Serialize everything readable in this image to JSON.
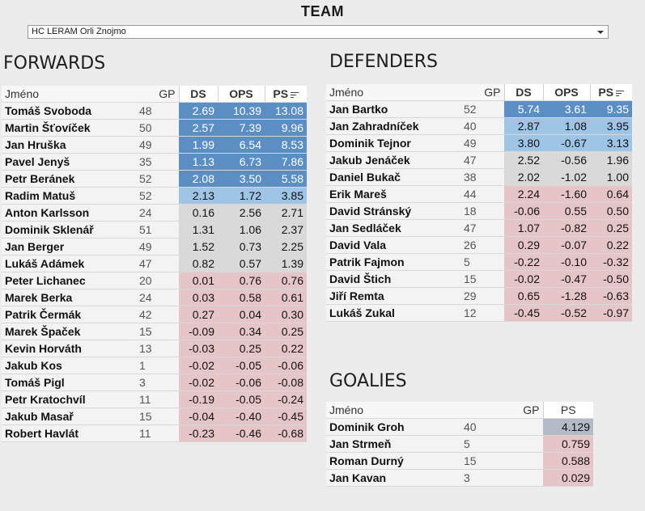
{
  "header": {
    "title": "TEAM",
    "team_selected": "HC LERAM Orli Znojmo"
  },
  "colors": {
    "tier_high": "#5b8fc4",
    "tier_mid": "#9ec5e6",
    "tier_neutral": "#d9d9d9",
    "tier_low": "#e6c5c8"
  },
  "forwards": {
    "title": "FORWARDS",
    "columns": {
      "name": "Jméno",
      "gp": "GP",
      "ds": "DS",
      "ops": "OPS",
      "ps": "PS"
    },
    "rows": [
      {
        "name": "Tomáš Svoboda",
        "gp": "48",
        "ds": "2.69",
        "ops": "10.39",
        "ps": "13.08",
        "tier": "t1"
      },
      {
        "name": "Martin Šťovíček",
        "gp": "50",
        "ds": "2.57",
        "ops": "7.39",
        "ps": "9.96",
        "tier": "t1"
      },
      {
        "name": "Jan Hruška",
        "gp": "49",
        "ds": "1.99",
        "ops": "6.54",
        "ps": "8.53",
        "tier": "t1"
      },
      {
        "name": "Pavel Jenyš",
        "gp": "35",
        "ds": "1.13",
        "ops": "6.73",
        "ps": "7.86",
        "tier": "t1"
      },
      {
        "name": "Petr Beránek",
        "gp": "52",
        "ds": "2.08",
        "ops": "3.50",
        "ps": "5.58",
        "tier": "t1"
      },
      {
        "name": "Radim Matuš",
        "gp": "52",
        "ds": "2.13",
        "ops": "1.72",
        "ps": "3.85",
        "tier": "t2"
      },
      {
        "name": "Anton Karlsson",
        "gp": "24",
        "ds": "0.16",
        "ops": "2.56",
        "ps": "2.71",
        "tier": "t3"
      },
      {
        "name": "Dominik Sklenář",
        "gp": "51",
        "ds": "1.31",
        "ops": "1.06",
        "ps": "2.37",
        "tier": "t3"
      },
      {
        "name": "Jan Berger",
        "gp": "49",
        "ds": "1.52",
        "ops": "0.73",
        "ps": "2.25",
        "tier": "t3"
      },
      {
        "name": "Lukáš Adámek",
        "gp": "47",
        "ds": "0.82",
        "ops": "0.57",
        "ps": "1.39",
        "tier": "t3"
      },
      {
        "name": "Peter Lichanec",
        "gp": "20",
        "ds": "0.01",
        "ops": "0.76",
        "ps": "0.76",
        "tier": "t4"
      },
      {
        "name": "Marek Berka",
        "gp": "24",
        "ds": "0.03",
        "ops": "0.58",
        "ps": "0.61",
        "tier": "t4"
      },
      {
        "name": "Patrik Čermák",
        "gp": "42",
        "ds": "0.27",
        "ops": "0.04",
        "ps": "0.30",
        "tier": "t4"
      },
      {
        "name": "Marek Špaček",
        "gp": "15",
        "ds": "-0.09",
        "ops": "0.34",
        "ps": "0.25",
        "tier": "t4"
      },
      {
        "name": "Kevin Horváth",
        "gp": "13",
        "ds": "-0.03",
        "ops": "0.25",
        "ps": "0.22",
        "tier": "t4"
      },
      {
        "name": "Jakub Kos",
        "gp": "1",
        "ds": "-0.02",
        "ops": "-0.05",
        "ps": "-0.06",
        "tier": "t4"
      },
      {
        "name": "Tomáš Pigl",
        "gp": "3",
        "ds": "-0.02",
        "ops": "-0.06",
        "ps": "-0.08",
        "tier": "t4"
      },
      {
        "name": "Petr Kratochvíl",
        "gp": "11",
        "ds": "-0.19",
        "ops": "-0.05",
        "ps": "-0.24",
        "tier": "t4"
      },
      {
        "name": "Jakub Masař",
        "gp": "15",
        "ds": "-0.04",
        "ops": "-0.40",
        "ps": "-0.45",
        "tier": "t4"
      },
      {
        "name": "Robert Havlát",
        "gp": "11",
        "ds": "-0.23",
        "ops": "-0.46",
        "ps": "-0.68",
        "tier": "t4"
      }
    ]
  },
  "defenders": {
    "title": "DEFENDERS",
    "columns": {
      "name": "Jméno",
      "gp": "GP",
      "ds": "DS",
      "ops": "OPS",
      "ps": "PS"
    },
    "rows": [
      {
        "name": "Jan Bartko",
        "gp": "52",
        "ds": "5.74",
        "ops": "3.61",
        "ps": "9.35",
        "tier": "t1"
      },
      {
        "name": "Jan Zahradníček",
        "gp": "40",
        "ds": "2.87",
        "ops": "1.08",
        "ps": "3.95",
        "tier": "t2"
      },
      {
        "name": "Dominik Tejnor",
        "gp": "49",
        "ds": "3.80",
        "ops": "-0.67",
        "ps": "3.13",
        "tier": "t2"
      },
      {
        "name": "Jakub Jenáček",
        "gp": "47",
        "ds": "2.52",
        "ops": "-0.56",
        "ps": "1.96",
        "tier": "t3"
      },
      {
        "name": "Daniel Bukač",
        "gp": "38",
        "ds": "2.02",
        "ops": "-1.02",
        "ps": "1.00",
        "tier": "t3"
      },
      {
        "name": "Erik Mareš",
        "gp": "44",
        "ds": "2.24",
        "ops": "-1.60",
        "ps": "0.64",
        "tier": "t4"
      },
      {
        "name": "David Stránský",
        "gp": "18",
        "ds": "-0.06",
        "ops": "0.55",
        "ps": "0.50",
        "tier": "t4"
      },
      {
        "name": "Jan Sedláček",
        "gp": "47",
        "ds": "1.07",
        "ops": "-0.82",
        "ps": "0.25",
        "tier": "t4"
      },
      {
        "name": "David Vala",
        "gp": "26",
        "ds": "0.29",
        "ops": "-0.07",
        "ps": "0.22",
        "tier": "t4"
      },
      {
        "name": "Patrik Fajmon",
        "gp": "5",
        "ds": "-0.22",
        "ops": "-0.10",
        "ps": "-0.32",
        "tier": "t4"
      },
      {
        "name": "David Štich",
        "gp": "15",
        "ds": "-0.02",
        "ops": "-0.47",
        "ps": "-0.50",
        "tier": "t4"
      },
      {
        "name": "Jiří Remta",
        "gp": "29",
        "ds": "0.65",
        "ops": "-1.28",
        "ps": "-0.63",
        "tier": "t4"
      },
      {
        "name": "Lukáš Zukal",
        "gp": "12",
        "ds": "-0.45",
        "ops": "-0.52",
        "ps": "-0.97",
        "tier": "t4"
      }
    ]
  },
  "goalies": {
    "title": "GOALIES",
    "columns": {
      "name": "Jméno",
      "gp": "GP",
      "ps": "PS"
    },
    "rows": [
      {
        "name": "Dominik Groh",
        "gp": "40",
        "ps": "4.129",
        "tier": "g1"
      },
      {
        "name": "Jan Strmeň",
        "gp": "5",
        "ps": "0.759",
        "tier": "t4"
      },
      {
        "name": "Roman Durný",
        "gp": "15",
        "ps": "0.588",
        "tier": "t4"
      },
      {
        "name": "Jan Kavan",
        "gp": "3",
        "ps": "0.029",
        "tier": "t4"
      }
    ]
  }
}
